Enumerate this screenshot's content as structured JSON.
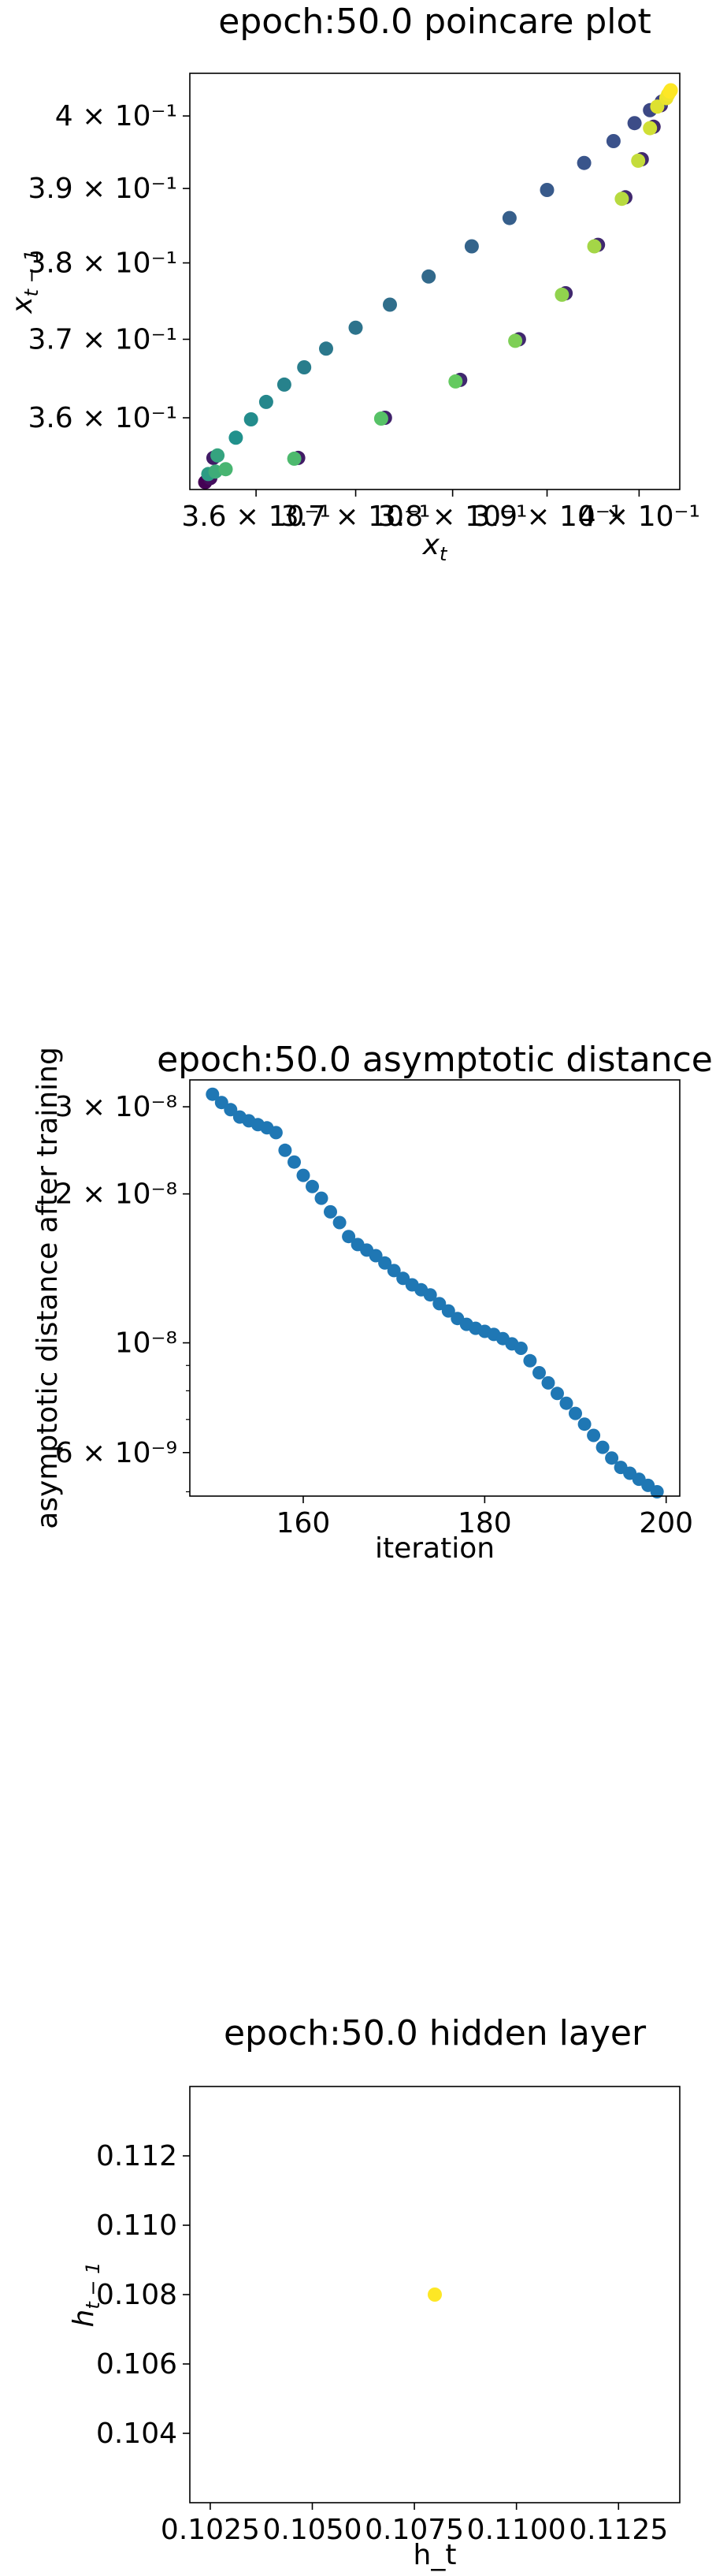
{
  "chart_data": [
    {
      "type": "scatter",
      "title": "epoch:50.0 poincare plot",
      "xlabel": "x_t",
      "ylabel": "x_{t-1}",
      "log_x": true,
      "log_y": true,
      "xlim": [
        0.3535,
        0.4045
      ],
      "ylim": [
        0.3511,
        0.406
      ],
      "x_tick_labels": [
        "3.6 × 10⁻¹",
        "3.7 × 10⁻¹",
        "3.8 × 10⁻¹",
        "3.9 × 10⁻¹",
        "4 × 10⁻¹"
      ],
      "x_tick_values": [
        0.36,
        0.37,
        0.38,
        0.39,
        0.4
      ],
      "y_tick_labels": [
        "3.6 × 10⁻¹",
        "3.7 × 10⁻¹",
        "3.8 × 10⁻¹",
        "3.9 × 10⁻¹",
        "4 × 10⁻¹"
      ],
      "y_tick_values": [
        0.36,
        0.37,
        0.38,
        0.39,
        0.4
      ],
      "colormap": [
        "#440154",
        "#3b528b",
        "#21918c",
        "#5ec962",
        "#fde725"
      ],
      "points": [
        {
          "x": 0.355,
          "y": 0.352,
          "c": 0.0
        },
        {
          "x": 0.3555,
          "y": 0.3525,
          "c": 0.04
        },
        {
          "x": 0.3558,
          "y": 0.355,
          "c": 0.08
        },
        {
          "x": 0.3553,
          "y": 0.353,
          "c": 0.55
        },
        {
          "x": 0.356,
          "y": 0.3533,
          "c": 0.62
        },
        {
          "x": 0.357,
          "y": 0.3536,
          "c": 0.66
        },
        {
          "x": 0.3562,
          "y": 0.3553,
          "c": 0.58
        },
        {
          "x": 0.358,
          "y": 0.3575,
          "c": 0.5
        },
        {
          "x": 0.3595,
          "y": 0.3598,
          "c": 0.48
        },
        {
          "x": 0.361,
          "y": 0.362,
          "c": 0.46
        },
        {
          "x": 0.3628,
          "y": 0.3642,
          "c": 0.44
        },
        {
          "x": 0.3648,
          "y": 0.3664,
          "c": 0.42
        },
        {
          "x": 0.367,
          "y": 0.3688,
          "c": 0.4
        },
        {
          "x": 0.37,
          "y": 0.3715,
          "c": 0.38
        },
        {
          "x": 0.3735,
          "y": 0.3745,
          "c": 0.36
        },
        {
          "x": 0.3775,
          "y": 0.3782,
          "c": 0.34
        },
        {
          "x": 0.382,
          "y": 0.3822,
          "c": 0.32
        },
        {
          "x": 0.386,
          "y": 0.386,
          "c": 0.3
        },
        {
          "x": 0.39,
          "y": 0.3898,
          "c": 0.28
        },
        {
          "x": 0.394,
          "y": 0.3935,
          "c": 0.26
        },
        {
          "x": 0.3972,
          "y": 0.3965,
          "c": 0.25
        },
        {
          "x": 0.3995,
          "y": 0.399,
          "c": 0.23
        },
        {
          "x": 0.4012,
          "y": 0.4008,
          "c": 0.22
        },
        {
          "x": 0.4025,
          "y": 0.402,
          "c": 0.2
        },
        {
          "x": 0.3642,
          "y": 0.355,
          "c": 0.08
        },
        {
          "x": 0.3638,
          "y": 0.3549,
          "c": 0.68
        },
        {
          "x": 0.373,
          "y": 0.36,
          "c": 0.1
        },
        {
          "x": 0.3726,
          "y": 0.3599,
          "c": 0.72
        },
        {
          "x": 0.3808,
          "y": 0.3648,
          "c": 0.12
        },
        {
          "x": 0.3803,
          "y": 0.3646,
          "c": 0.76
        },
        {
          "x": 0.387,
          "y": 0.37,
          "c": 0.12
        },
        {
          "x": 0.3866,
          "y": 0.3698,
          "c": 0.8
        },
        {
          "x": 0.392,
          "y": 0.376,
          "c": 0.12
        },
        {
          "x": 0.3916,
          "y": 0.3758,
          "c": 0.83
        },
        {
          "x": 0.3955,
          "y": 0.3824,
          "c": 0.12
        },
        {
          "x": 0.3951,
          "y": 0.3822,
          "c": 0.86
        },
        {
          "x": 0.3985,
          "y": 0.3888,
          "c": 0.12
        },
        {
          "x": 0.3981,
          "y": 0.3886,
          "c": 0.89
        },
        {
          "x": 0.4003,
          "y": 0.394,
          "c": 0.12
        },
        {
          "x": 0.3999,
          "y": 0.3938,
          "c": 0.91
        },
        {
          "x": 0.4016,
          "y": 0.3985,
          "c": 0.12
        },
        {
          "x": 0.4012,
          "y": 0.3983,
          "c": 0.93
        },
        {
          "x": 0.4024,
          "y": 0.4015,
          "c": 0.12
        },
        {
          "x": 0.402,
          "y": 0.4013,
          "c": 0.95
        },
        {
          "x": 0.403,
          "y": 0.4025,
          "c": 0.97
        },
        {
          "x": 0.4032,
          "y": 0.403,
          "c": 0.98
        },
        {
          "x": 0.4034,
          "y": 0.4034,
          "c": 1.0
        },
        {
          "x": 0.4035,
          "y": 0.4036,
          "c": 1.0
        }
      ]
    },
    {
      "type": "scatter",
      "title": "epoch:50.0 asymptotic distance",
      "xlabel": "iteration",
      "ylabel": "asymptotic distance after training",
      "log_y": true,
      "xlim": [
        147.5,
        201.5
      ],
      "ylim": [
        4.9e-09,
        3.4e-08
      ],
      "x_ticks": [
        160,
        180,
        200
      ],
      "y_tick_labels": [
        "3 × 10⁻⁸",
        "2 × 10⁻⁸",
        "10⁻⁸",
        "6 × 10⁻⁹"
      ],
      "y_tick_values": [
        3e-08,
        2e-08,
        1e-08,
        6e-09
      ],
      "color": "#1f77b4",
      "x": [
        150,
        151,
        152,
        153,
        154,
        155,
        156,
        157,
        158,
        159,
        160,
        161,
        162,
        163,
        164,
        165,
        166,
        167,
        168,
        169,
        170,
        171,
        172,
        173,
        174,
        175,
        176,
        177,
        178,
        179,
        180,
        181,
        182,
        183,
        184,
        185,
        186,
        187,
        188,
        189,
        190,
        191,
        192,
        193,
        194,
        195,
        196,
        197,
        198,
        199
      ],
      "y": [
        3.18e-08,
        3.06e-08,
        2.96e-08,
        2.86e-08,
        2.81e-08,
        2.76e-08,
        2.72e-08,
        2.66e-08,
        2.45e-08,
        2.32e-08,
        2.18e-08,
        2.07e-08,
        1.96e-08,
        1.84e-08,
        1.75e-08,
        1.64e-08,
        1.58e-08,
        1.54e-08,
        1.5e-08,
        1.45e-08,
        1.4e-08,
        1.35e-08,
        1.31e-08,
        1.28e-08,
        1.25e-08,
        1.2e-08,
        1.16e-08,
        1.12e-08,
        1.09e-08,
        1.07e-08,
        1.055e-08,
        1.04e-08,
        1.02e-08,
        9.95e-09,
        9.75e-09,
        9.2e-09,
        8.7e-09,
        8.3e-09,
        7.9e-09,
        7.55e-09,
        7.2e-09,
        6.85e-09,
        6.5e-09,
        6.15e-09,
        5.85e-09,
        5.6e-09,
        5.45e-09,
        5.3e-09,
        5.15e-09,
        5e-09
      ]
    },
    {
      "type": "scatter",
      "title": "epoch:50.0 hidden layer",
      "xlabel": "h_t",
      "ylabel": "h_{t-1}",
      "xlim": [
        0.102,
        0.114
      ],
      "ylim": [
        0.102,
        0.114
      ],
      "x_ticks": [
        0.1025,
        0.105,
        0.1075,
        0.11,
        0.1125
      ],
      "x_tick_labels": [
        "0.1025",
        "0.1050",
        "0.1075",
        "0.1100",
        "0.1125"
      ],
      "y_ticks": [
        0.104,
        0.106,
        0.108,
        0.11,
        0.112
      ],
      "y_tick_labels": [
        "0.104",
        "0.106",
        "0.108",
        "0.110",
        "0.112"
      ],
      "color": "#fde725",
      "points": [
        {
          "x": 0.108,
          "y": 0.108
        }
      ]
    }
  ]
}
